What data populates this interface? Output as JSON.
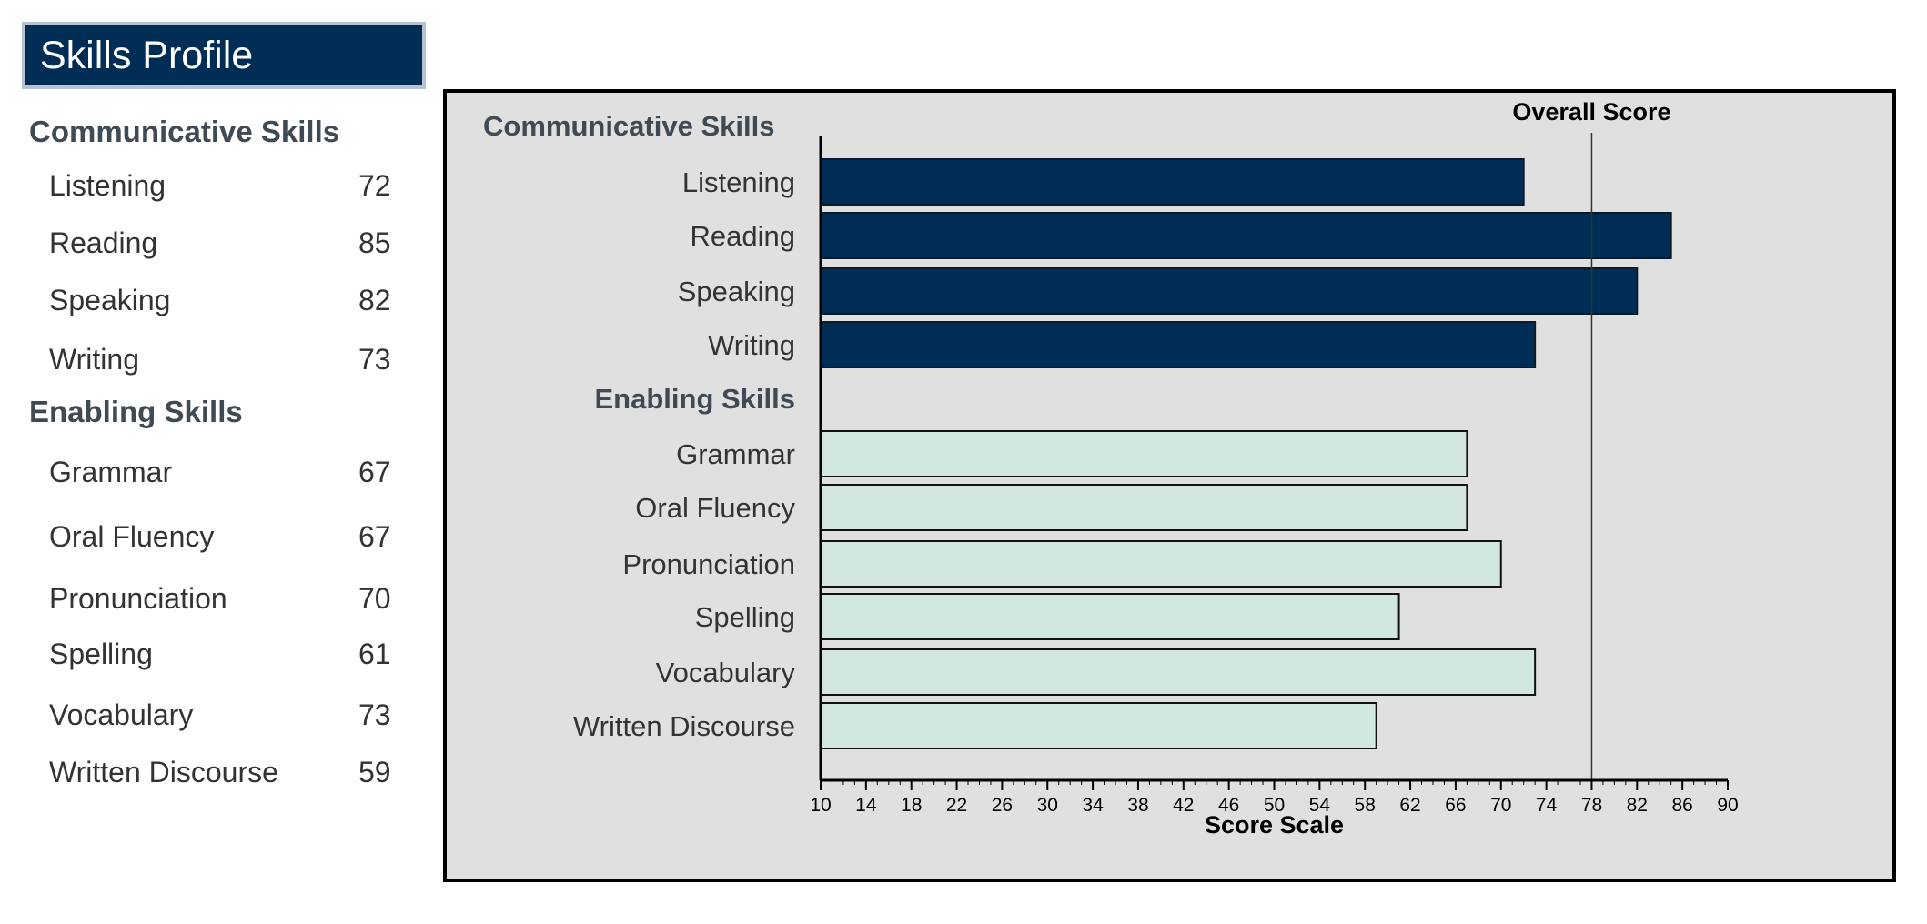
{
  "page": {
    "title": "Skills Profile"
  },
  "sidebar": {
    "communicative_heading": "Communicative Skills",
    "enabling_heading": "Enabling Skills",
    "communicative": [
      {
        "label": "Listening",
        "score": "72"
      },
      {
        "label": "Reading",
        "score": "85"
      },
      {
        "label": "Speaking",
        "score": "82"
      },
      {
        "label": "Writing",
        "score": "73"
      }
    ],
    "enabling": [
      {
        "label": "Grammar",
        "score": "67"
      },
      {
        "label": "Oral Fluency",
        "score": "67"
      },
      {
        "label": "Pronunciation",
        "score": "70"
      },
      {
        "label": "Spelling",
        "score": "61"
      },
      {
        "label": "Vocabulary",
        "score": "73"
      },
      {
        "label": "Written Discourse",
        "score": "59"
      }
    ]
  },
  "colors": {
    "communicative_bar": "#002d56",
    "enabling_bar": "#d3e7e2",
    "panel_bg": "#e0e0e0",
    "title_bg": "#002d56"
  },
  "chart_data": {
    "type": "bar",
    "orientation": "horizontal",
    "xlabel": "Score Scale",
    "xlim": [
      10,
      90
    ],
    "xticks": [
      10,
      14,
      18,
      22,
      26,
      30,
      34,
      38,
      42,
      46,
      50,
      54,
      58,
      62,
      66,
      70,
      74,
      78,
      82,
      86,
      90
    ],
    "reference_line": {
      "label": "Overall Score",
      "value": 78
    },
    "groups": [
      {
        "name": "Communicative Skills",
        "categories": [
          "Listening",
          "Reading",
          "Speaking",
          "Writing"
        ],
        "values": [
          72,
          85,
          82,
          73
        ]
      },
      {
        "name": "Enabling Skills",
        "categories": [
          "Grammar",
          "Oral Fluency",
          "Pronunciation",
          "Spelling",
          "Vocabulary",
          "Written Discourse"
        ],
        "values": [
          67,
          67,
          70,
          61,
          73,
          59
        ]
      }
    ]
  }
}
